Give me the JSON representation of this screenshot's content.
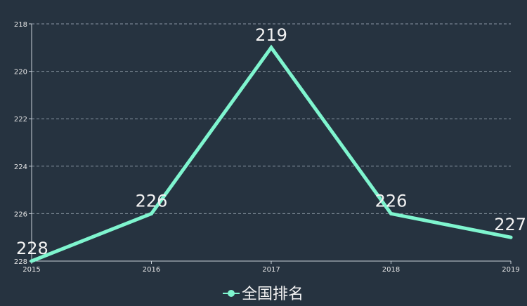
{
  "colors": {
    "background": "#263340",
    "series": "#7ff5cf",
    "grid": "#8a96a3",
    "axis": "#c9d1d9",
    "text": "#f2f2f2"
  },
  "chart_data": {
    "type": "line",
    "x": [
      "2015",
      "2016",
      "2017",
      "2018",
      "2019"
    ],
    "series": [
      {
        "name": "全国排名",
        "values": [
          228,
          226,
          219,
          226,
          227
        ]
      }
    ],
    "y_ticks": [
      "218",
      "220",
      "222",
      "224",
      "226",
      "228"
    ],
    "ylim": [
      228,
      218
    ],
    "y_inverted": true,
    "grid": true,
    "legend": "bottom-center",
    "data_labels": true
  }
}
